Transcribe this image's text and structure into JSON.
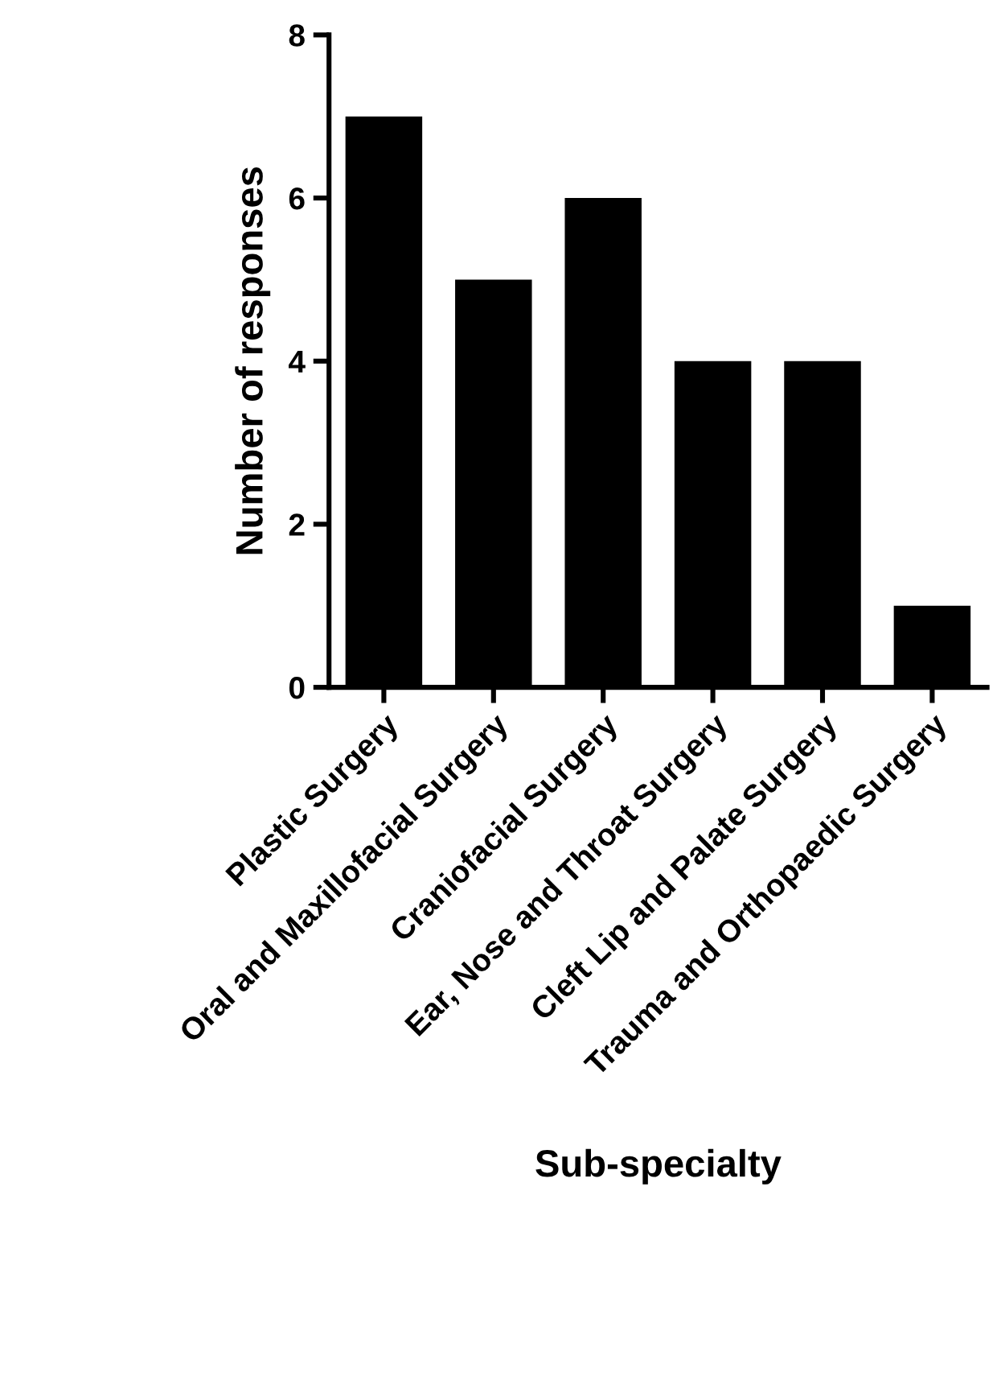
{
  "chart_data": {
    "type": "bar",
    "xlabel": "Sub-specialty",
    "ylabel": "Number of responses",
    "categories": [
      "Plastic Surgery",
      "Oral and Maxillofacial Surgery",
      "Craniofacial Surgery",
      "Ear, Nose and Throat Surgery",
      "Cleft Lip and Palate Surgery",
      "Trauma and Orthopaedic Surgery"
    ],
    "values": [
      7,
      5,
      6,
      4,
      4,
      1
    ],
    "color": "#000000",
    "ylim": [
      0,
      8
    ],
    "yticks": [
      0,
      2,
      4,
      6,
      8
    ],
    "grid": false,
    "legend": false
  }
}
